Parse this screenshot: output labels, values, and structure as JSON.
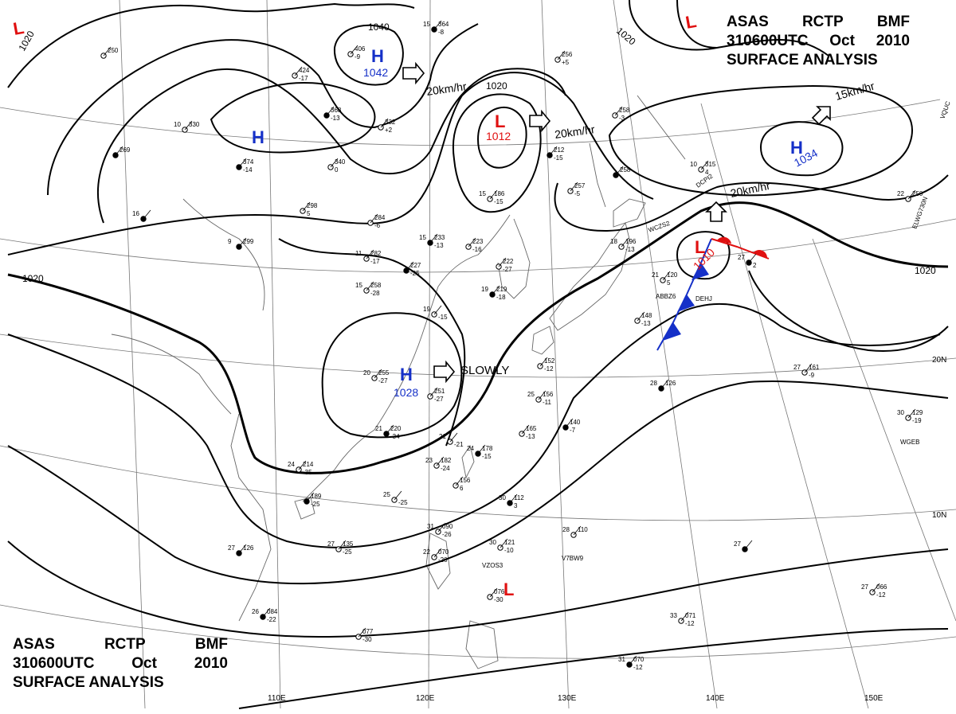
{
  "header": {
    "line1": [
      "ASAS",
      "RCTP",
      "BMF"
    ],
    "line2": [
      "310600UTC",
      "Oct",
      "2010"
    ],
    "line3": "SURFACE ANALYSIS"
  },
  "colors": {
    "high": "#1530c8",
    "low": "#e01010",
    "cold_front": "#1530c8",
    "warm_front": "#e01010",
    "isobar": "#000000",
    "grid": "#777777"
  },
  "longitude_labels": [
    "110E",
    "120E",
    "130E",
    "140E",
    "150E"
  ],
  "latitude_labels": [
    "20N",
    "10N"
  ],
  "pressure_centers": [
    {
      "type": "high",
      "symbol": "H",
      "value": "1042"
    },
    {
      "type": "high",
      "symbol": "H",
      "value": ""
    },
    {
      "type": "high",
      "symbol": "H",
      "value": "1028"
    },
    {
      "type": "high",
      "symbol": "H",
      "value": "1034"
    },
    {
      "type": "low",
      "symbol": "L",
      "value": "1012"
    },
    {
      "type": "low",
      "symbol": "L",
      "value": "1010"
    },
    {
      "type": "low",
      "symbol": "L",
      "value": ""
    },
    {
      "type": "low",
      "symbol": "L",
      "value": ""
    },
    {
      "type": "low",
      "symbol": "L",
      "value": ""
    }
  ],
  "isobar_labels": [
    "1040",
    "1020",
    "1020",
    "1020",
    "1020",
    "1020"
  ],
  "movements": [
    "20km/hr",
    "20km/hr",
    "15km/hr",
    "20km/hr",
    "SLOWLY"
  ],
  "stations": [
    {
      "a": "15",
      "b": "364",
      "c": "-8"
    },
    {
      "a": "",
      "b": "406",
      "c": "-9"
    },
    {
      "a": "",
      "b": "424",
      "c": "-17"
    },
    {
      "a": "",
      "b": "368",
      "c": "-13"
    },
    {
      "a": "",
      "b": "332",
      "c": "+2"
    },
    {
      "a": "10",
      "b": "330",
      "c": ""
    },
    {
      "a": "",
      "b": "374",
      "c": "-14"
    },
    {
      "a": "",
      "b": "340",
      "c": "0"
    },
    {
      "a": "",
      "b": "250",
      "c": ""
    },
    {
      "a": "",
      "b": "269",
      "c": ""
    },
    {
      "a": "",
      "b": "298",
      "c": "5"
    },
    {
      "a": "",
      "b": "284",
      "c": "-6"
    },
    {
      "a": "9",
      "b": "299",
      "c": ""
    },
    {
      "a": "",
      "b": "256",
      "c": "+5"
    },
    {
      "a": "",
      "b": "258",
      "c": "-3"
    },
    {
      "a": "",
      "b": "212",
      "c": "-15"
    },
    {
      "a": "",
      "b": "257",
      "c": "-5"
    },
    {
      "a": "15",
      "b": "186",
      "c": "-15"
    },
    {
      "a": "15",
      "b": "233",
      "c": "-13"
    },
    {
      "a": "",
      "b": "223",
      "c": "-16"
    },
    {
      "a": "11",
      "b": "282",
      "c": "-17"
    },
    {
      "a": "",
      "b": "227",
      "c": "-25"
    },
    {
      "a": "",
      "b": "222",
      "c": "-27"
    },
    {
      "a": "15",
      "b": "258",
      "c": "-28"
    },
    {
      "a": "19",
      "b": "219",
      "c": "-18"
    },
    {
      "a": "19",
      "b": "",
      "c": "-15"
    },
    {
      "a": "10",
      "b": "315",
      "c": "4"
    },
    {
      "a": "",
      "b": "258",
      "c": ""
    },
    {
      "a": "18",
      "b": "196",
      "c": "-13"
    },
    {
      "a": "21",
      "b": "120",
      "c": "5"
    },
    {
      "a": "27",
      "b": "",
      "c": "2"
    },
    {
      "a": "",
      "b": "148",
      "c": "-13"
    },
    {
      "a": "22",
      "b": "250",
      "c": ""
    },
    {
      "a": "16",
      "b": "",
      "c": ""
    },
    {
      "a": "20",
      "b": "255",
      "c": "-27"
    },
    {
      "a": "",
      "b": "251",
      "c": "-27"
    },
    {
      "a": "21",
      "b": "220",
      "c": "-34"
    },
    {
      "a": "24",
      "b": "214",
      "c": "-35"
    },
    {
      "a": "21",
      "b": "",
      "c": "-21"
    },
    {
      "a": "24",
      "b": "178",
      "c": "-15"
    },
    {
      "a": "23",
      "b": "182",
      "c": "-24"
    },
    {
      "a": "",
      "b": "156",
      "c": "6"
    },
    {
      "a": "",
      "b": "189",
      "c": "-25"
    },
    {
      "a": "25",
      "b": "",
      "c": "-25"
    },
    {
      "a": "25",
      "b": "156",
      "c": "-11"
    },
    {
      "a": "",
      "b": "140",
      "c": "-7"
    },
    {
      "a": "",
      "b": "152",
      "c": "-12"
    },
    {
      "a": "",
      "b": "165",
      "c": "-13"
    },
    {
      "a": "28",
      "b": "126",
      "c": ""
    },
    {
      "a": "27",
      "b": "161",
      "c": "-9"
    },
    {
      "a": "30",
      "b": "129",
      "c": "-19"
    },
    {
      "a": "27",
      "b": "126",
      "c": ""
    },
    {
      "a": "27",
      "b": "135",
      "c": "-25"
    },
    {
      "a": "31",
      "b": "090",
      "c": "-26"
    },
    {
      "a": "30",
      "b": "112",
      "c": "3"
    },
    {
      "a": "30",
      "b": "121",
      "c": "-10"
    },
    {
      "a": "28",
      "b": "110",
      "c": ""
    },
    {
      "a": "27",
      "b": "",
      "c": ""
    },
    {
      "a": "22",
      "b": "070",
      "c": "-20"
    },
    {
      "a": "",
      "b": "076",
      "c": "-30"
    },
    {
      "a": "26",
      "b": "084",
      "c": "-22"
    },
    {
      "a": "",
      "b": "077",
      "c": "-30"
    },
    {
      "a": "33",
      "b": "071",
      "c": "-12"
    },
    {
      "a": "31",
      "b": "070",
      "c": "-12"
    },
    {
      "a": "27",
      "b": "066",
      "c": "-12"
    }
  ],
  "ship_ids": [
    "DCPI2",
    "WCZS2",
    "ABBZ6",
    "DEHJ",
    "VZOS3",
    "V7BW9",
    "WGEB",
    "ELWG730N",
    "VQUC"
  ]
}
